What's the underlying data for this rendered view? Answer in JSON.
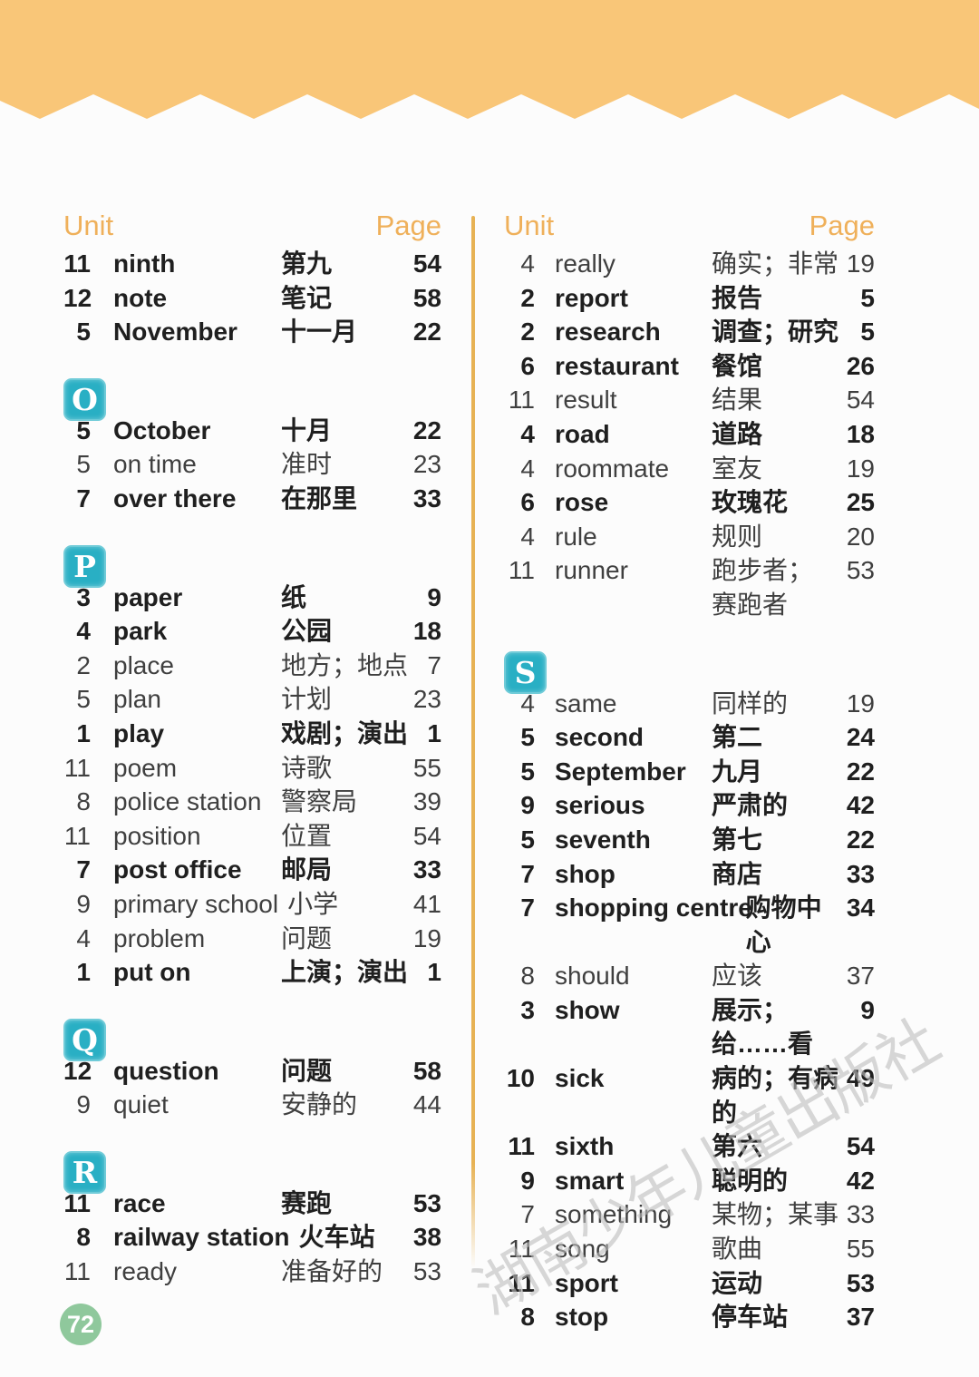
{
  "page_number": "72",
  "watermark": "湖南少年儿童出版社",
  "colors": {
    "banner-orange": "#F9C678",
    "header-orange": "#EFB05A",
    "divider-gold": "#E7B254",
    "letter-teal": "#29AFC4",
    "letter-teal-light": "#6FCBD8",
    "page-green": "#8FC89C",
    "text-dark": "#1F1F1F",
    "text-regular": "#3F3F3F",
    "watermark-gray": "#BDBDBD"
  },
  "left_column": {
    "header": {
      "unit": "Unit",
      "page": "Page"
    },
    "groups": [
      {
        "letter": null,
        "entries": [
          {
            "unit": "11",
            "word": "ninth",
            "meaning": "第九",
            "page": "54",
            "bold": true
          },
          {
            "unit": "12",
            "word": "note",
            "meaning": "笔记",
            "page": "58",
            "bold": true
          },
          {
            "unit": "5",
            "word": "November",
            "meaning": "十一月",
            "page": "22",
            "bold": true
          }
        ]
      },
      {
        "letter": "O",
        "entries": [
          {
            "unit": "5",
            "word": "October",
            "meaning": "十月",
            "page": "22",
            "bold": true
          },
          {
            "unit": "5",
            "word": "on time",
            "meaning": "准时",
            "page": "23",
            "bold": false
          },
          {
            "unit": "7",
            "word": "over there",
            "meaning": "在那里",
            "page": "33",
            "bold": true
          }
        ]
      },
      {
        "letter": "P",
        "entries": [
          {
            "unit": "3",
            "word": "paper",
            "meaning": "纸",
            "page": "9",
            "bold": true
          },
          {
            "unit": "4",
            "word": "park",
            "meaning": "公园",
            "page": "18",
            "bold": true
          },
          {
            "unit": "2",
            "word": "place",
            "meaning": "地方；地点",
            "page": "7",
            "bold": false
          },
          {
            "unit": "5",
            "word": "plan",
            "meaning": "计划",
            "page": "23",
            "bold": false
          },
          {
            "unit": "1",
            "word": "play",
            "meaning": "戏剧；演出",
            "page": "1",
            "bold": true
          },
          {
            "unit": "11",
            "word": "poem",
            "meaning": "诗歌",
            "page": "55",
            "bold": false
          },
          {
            "unit": "8",
            "word": "police station",
            "meaning": "警察局",
            "page": "39",
            "bold": false
          },
          {
            "unit": "11",
            "word": "position",
            "meaning": "位置",
            "page": "54",
            "bold": false
          },
          {
            "unit": "7",
            "word": "post office",
            "meaning": "邮局",
            "page": "33",
            "bold": true
          },
          {
            "unit": "9",
            "word": "primary school",
            "meaning": "小学",
            "page": "41",
            "bold": false
          },
          {
            "unit": "4",
            "word": "problem",
            "meaning": "问题",
            "page": "19",
            "bold": false
          },
          {
            "unit": "1",
            "word": "put on",
            "meaning": "上演；演出",
            "page": "1",
            "bold": true
          }
        ]
      },
      {
        "letter": "Q",
        "entries": [
          {
            "unit": "12",
            "word": "question",
            "meaning": "问题",
            "page": "58",
            "bold": true
          },
          {
            "unit": "9",
            "word": "quiet",
            "meaning": "安静的",
            "page": "44",
            "bold": false
          }
        ]
      },
      {
        "letter": "R",
        "entries": [
          {
            "unit": "11",
            "word": "race",
            "meaning": "赛跑",
            "page": "53",
            "bold": true
          },
          {
            "unit": "8",
            "word": "railway station",
            "meaning": "火车站",
            "page": "38",
            "bold": true
          },
          {
            "unit": "11",
            "word": "ready",
            "meaning": "准备好的",
            "page": "53",
            "bold": false
          }
        ]
      }
    ]
  },
  "right_column": {
    "header": {
      "unit": "Unit",
      "page": "Page"
    },
    "groups": [
      {
        "letter": null,
        "entries": [
          {
            "unit": "4",
            "word": "really",
            "meaning": "确实；非常",
            "page": "19",
            "bold": false
          },
          {
            "unit": "2",
            "word": "report",
            "meaning": "报告",
            "page": "5",
            "bold": true
          },
          {
            "unit": "2",
            "word": "research",
            "meaning": "调查；研究",
            "page": "5",
            "bold": true
          },
          {
            "unit": "6",
            "word": "restaurant",
            "meaning": "餐馆",
            "page": "26",
            "bold": true
          },
          {
            "unit": "11",
            "word": "result",
            "meaning": "结果",
            "page": "54",
            "bold": false
          },
          {
            "unit": "4",
            "word": "road",
            "meaning": "道路",
            "page": "18",
            "bold": true
          },
          {
            "unit": "4",
            "word": "roommate",
            "meaning": "室友",
            "page": "19",
            "bold": false
          },
          {
            "unit": "6",
            "word": "rose",
            "meaning": "玫瑰花",
            "page": "25",
            "bold": true
          },
          {
            "unit": "4",
            "word": "rule",
            "meaning": "规则",
            "page": "20",
            "bold": false
          },
          {
            "unit": "11",
            "word": "runner",
            "meaning": "跑步者；\n赛跑者",
            "page": "53",
            "bold": false
          }
        ]
      },
      {
        "letter": "S",
        "entries": [
          {
            "unit": "4",
            "word": "same",
            "meaning": "同样的",
            "page": "19",
            "bold": false
          },
          {
            "unit": "5",
            "word": "second",
            "meaning": "第二",
            "page": "24",
            "bold": true
          },
          {
            "unit": "5",
            "word": "September",
            "meaning": "九月",
            "page": "22",
            "bold": true
          },
          {
            "unit": "9",
            "word": "serious",
            "meaning": "严肃的",
            "page": "42",
            "bold": true
          },
          {
            "unit": "5",
            "word": "seventh",
            "meaning": "第七",
            "page": "22",
            "bold": true
          },
          {
            "unit": "7",
            "word": "shop",
            "meaning": "商店",
            "page": "33",
            "bold": true
          },
          {
            "unit": "7",
            "word": "shopping centre",
            "meaning": "购物中心",
            "page": "34",
            "bold": true
          },
          {
            "unit": "8",
            "word": "should",
            "meaning": "应该",
            "page": "37",
            "bold": false
          },
          {
            "unit": "3",
            "word": "show",
            "meaning": "展示；\n给……看",
            "page": "9",
            "bold": true
          },
          {
            "unit": "10",
            "word": "sick",
            "meaning": "病的；有病的",
            "page": "49",
            "bold": true
          },
          {
            "unit": "11",
            "word": "sixth",
            "meaning": "第六",
            "page": "54",
            "bold": true
          },
          {
            "unit": "9",
            "word": "smart",
            "meaning": "聪明的",
            "page": "42",
            "bold": true
          },
          {
            "unit": "7",
            "word": "something",
            "meaning": "某物；某事",
            "page": "33",
            "bold": false
          },
          {
            "unit": "11",
            "word": "song",
            "meaning": "歌曲",
            "page": "55",
            "bold": false
          },
          {
            "unit": "11",
            "word": "sport",
            "meaning": "运动",
            "page": "53",
            "bold": true
          },
          {
            "unit": "8",
            "word": "stop",
            "meaning": "停车站",
            "page": "37",
            "bold": true
          }
        ]
      }
    ]
  }
}
